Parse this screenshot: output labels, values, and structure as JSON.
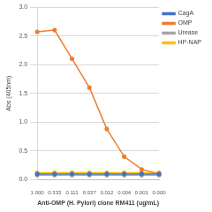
{
  "chart_data": {
    "type": "line",
    "x_label": "Anti-OMP (H. Pylori) clone RM411 (ug/mL)",
    "y_label": "Abs (405nm)",
    "categories": [
      "1.000",
      "0.333",
      "0.111",
      "0.037",
      "0.012",
      "0.004",
      "0.001",
      "0.000"
    ],
    "series": [
      {
        "name": "CagA",
        "color": "#4472c4",
        "values": [
          0.1,
          0.1,
          0.1,
          0.1,
          0.1,
          0.1,
          0.1,
          0.1
        ]
      },
      {
        "name": "OMP",
        "color": "#ed7d31",
        "values": [
          2.57,
          2.6,
          2.1,
          1.6,
          0.88,
          0.4,
          0.18,
          0.1
        ]
      },
      {
        "name": "Urease",
        "color": "#a5a5a5",
        "values": [
          0.08,
          0.08,
          0.08,
          0.08,
          0.08,
          0.08,
          0.08,
          0.08
        ]
      },
      {
        "name": "HP-NAP",
        "color": "#ffc000",
        "values": [
          0.12,
          0.12,
          0.12,
          0.12,
          0.12,
          0.12,
          0.12,
          0.12
        ]
      }
    ],
    "ylim": [
      0,
      3
    ],
    "yticks": [
      {
        "value": 0,
        "label": "0.0"
      },
      {
        "value": 0.5,
        "label": "0.5"
      },
      {
        "value": 1,
        "label": "1.0"
      },
      {
        "value": 1.5,
        "label": "1.5"
      },
      {
        "value": 2,
        "label": "2.0"
      },
      {
        "value": 2.5,
        "label": "2.5"
      },
      {
        "value": 3,
        "label": "3.0"
      }
    ],
    "grid": true,
    "legend": "upper right",
    "marker": "circle"
  }
}
